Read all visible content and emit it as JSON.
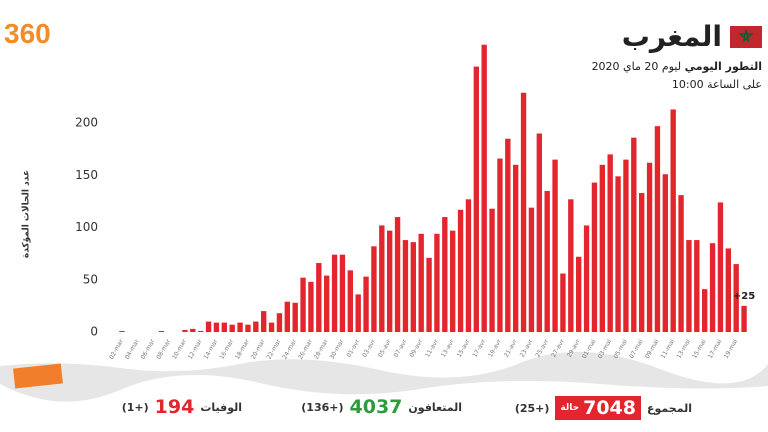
{
  "logo": "360",
  "header": {
    "country": "المغرب",
    "subtitle_bold": "التطور اليومي",
    "subtitle": "ليوم 20 ماي 2020",
    "time": "على الساعة 10:00"
  },
  "chart_data": {
    "type": "bar",
    "y_label": "عدد الحالات المؤكدة",
    "categories": [
      "02-mar",
      null,
      "04-mar",
      null,
      "06-mar",
      null,
      "08-mar",
      null,
      "10-mar",
      null,
      "12-mar",
      null,
      "14-mar",
      null,
      "16-mar",
      null,
      "18-mar",
      null,
      "20-mar",
      null,
      "22-mar",
      null,
      "24-mar",
      null,
      "26-mar",
      null,
      "28-mar",
      null,
      "30-mar",
      null,
      "01-avr",
      null,
      "03-avr",
      null,
      "05-avr",
      null,
      "07-avr",
      null,
      "09-avr",
      null,
      "11-avr",
      null,
      "13-avr",
      null,
      "15-avr",
      null,
      "17-avr",
      null,
      "19-avr",
      null,
      "21-avr",
      null,
      "23-avr",
      null,
      "25-avr",
      null,
      "27-avr",
      null,
      "29-avr",
      null,
      "01-mai",
      null,
      "03-mai",
      null,
      "05-mai",
      null,
      "07-mai",
      null,
      "09-mai",
      null,
      "11-mai",
      null,
      "13-mai",
      null,
      "15-mai",
      null,
      "17-mai",
      null,
      "19-mai",
      null
    ],
    "values": [
      1,
      0,
      0,
      0,
      0,
      1,
      0,
      0,
      2,
      3,
      1,
      10,
      9,
      9,
      7,
      9,
      7,
      10,
      20,
      9,
      18,
      29,
      28,
      52,
      48,
      66,
      54,
      74,
      74,
      59,
      36,
      53,
      82,
      102,
      97,
      110,
      88,
      86,
      94,
      71,
      94,
      110,
      97,
      117,
      127,
      254,
      275,
      118,
      166,
      185,
      160,
      229,
      119,
      190,
      135,
      165,
      56,
      127,
      72,
      102,
      143,
      160,
      170,
      149,
      165,
      186,
      133,
      162,
      197,
      151,
      213,
      131,
      88,
      88,
      41,
      85,
      124,
      80,
      65,
      25
    ],
    "value_labels": [
      null,
      null,
      null,
      null,
      null,
      null,
      null,
      null,
      null,
      null,
      null,
      null,
      null,
      null,
      null,
      null,
      null,
      null,
      null,
      null,
      null,
      null,
      null,
      null,
      null,
      null,
      null,
      null,
      null,
      null,
      null,
      null,
      null,
      null,
      null,
      null,
      null,
      null,
      null,
      null,
      null,
      null,
      null,
      null,
      null,
      null,
      null,
      null,
      null,
      null,
      null,
      null,
      null,
      null,
      null,
      null,
      null,
      null,
      null,
      null,
      null,
      null,
      null,
      null,
      null,
      null,
      null,
      null,
      null,
      null,
      null,
      null,
      null,
      null,
      null,
      null,
      null,
      null,
      null,
      "+25"
    ],
    "color": "#e3262d",
    "ylim": [
      0,
      290
    ],
    "yticks": [
      0,
      50,
      100,
      150,
      200
    ],
    "grid": false
  },
  "stats": {
    "total": {
      "label": "المجموع",
      "value": "7048",
      "unit": "حالة",
      "change": "(+25)"
    },
    "recovered": {
      "label": "المتعافون",
      "value": "4037",
      "change": "(+136)"
    },
    "deaths": {
      "label": "الوفيات",
      "value": "194",
      "change": "(+1)"
    }
  }
}
